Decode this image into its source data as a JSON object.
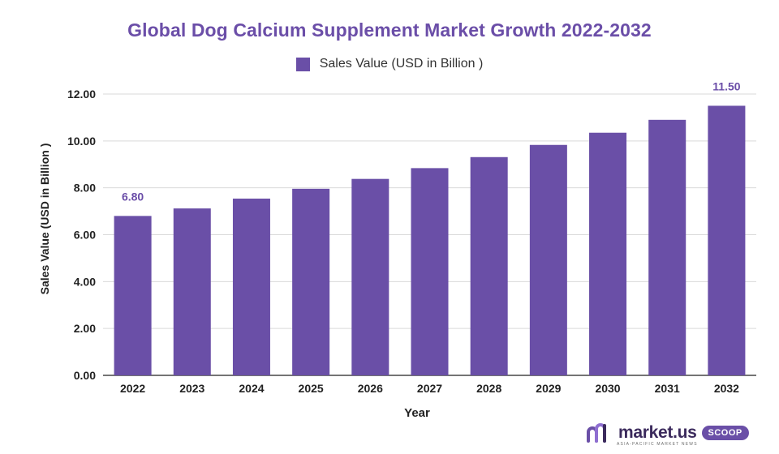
{
  "chart_data": {
    "type": "bar",
    "title": "Global Dog Calcium Supplement Market Growth 2022-2032",
    "xlabel": "Year",
    "ylabel": "Sales Value (USD in Billion )",
    "categories": [
      "2022",
      "2023",
      "2024",
      "2025",
      "2026",
      "2027",
      "2028",
      "2029",
      "2030",
      "2031",
      "2032"
    ],
    "series": [
      {
        "name": "Sales Value (USD in Billion )",
        "values": [
          6.8,
          7.12,
          7.54,
          7.96,
          8.38,
          8.84,
          9.31,
          9.83,
          10.35,
          10.9,
          11.5
        ],
        "color": "#6a4fa7"
      }
    ],
    "data_labels": [
      {
        "category": "2022",
        "text": "6.80"
      },
      {
        "category": "2032",
        "text": "11.50"
      }
    ],
    "ylim": [
      0,
      12
    ],
    "yticks": [
      "0.00",
      "2.00",
      "4.00",
      "6.00",
      "8.00",
      "10.00",
      "12.00"
    ],
    "grid": true,
    "legend_position": "top-center"
  },
  "brand": {
    "name": "market.us",
    "badge": "SCOOP",
    "tagline": "ASIA-PACIFIC MARKET NEWS"
  }
}
